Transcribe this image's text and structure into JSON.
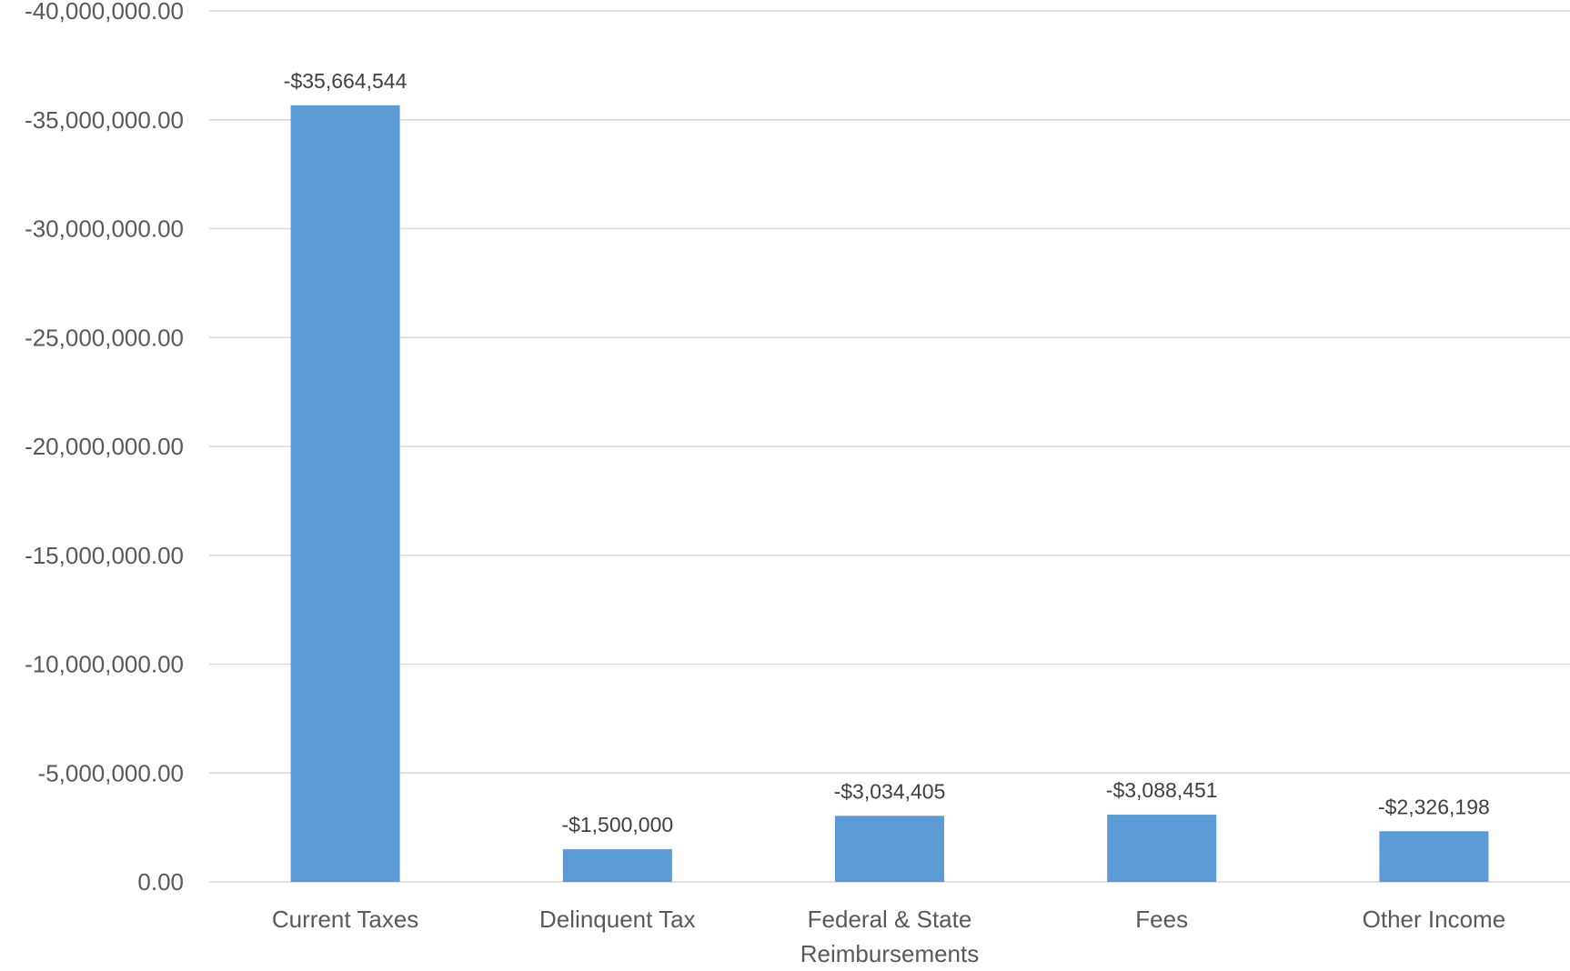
{
  "chart_data": {
    "type": "bar",
    "title": "",
    "xlabel": "",
    "ylabel": "",
    "categories": [
      [
        "Current Taxes"
      ],
      [
        "Delinquent Tax"
      ],
      [
        "Federal & State",
        "Reimbursements"
      ],
      [
        "Fees"
      ],
      [
        "Other Income"
      ]
    ],
    "values": [
      -35664544,
      -1500000,
      -3034405,
      -3088451,
      -2326198
    ],
    "data_labels": [
      "-$35,664,544",
      "-$1,500,000",
      "-$3,034,405",
      "-$3,088,451",
      "-$2,326,198"
    ],
    "y_axis": {
      "reversed": true,
      "ylim": [
        0,
        -40000000
      ],
      "ticks": [
        0,
        -5000000,
        -10000000,
        -15000000,
        -20000000,
        -25000000,
        -30000000,
        -35000000,
        -40000000
      ],
      "tick_labels": [
        "0.00",
        "-5,000,000.00",
        "-10,000,000.00",
        "-15,000,000.00",
        "-20,000,000.00",
        "-25,000,000.00",
        "-30,000,000.00",
        "-35,000,000.00",
        "-40,000,000.00"
      ]
    },
    "grid": true,
    "legend": "none",
    "bar_color": "#5b9bd5"
  }
}
